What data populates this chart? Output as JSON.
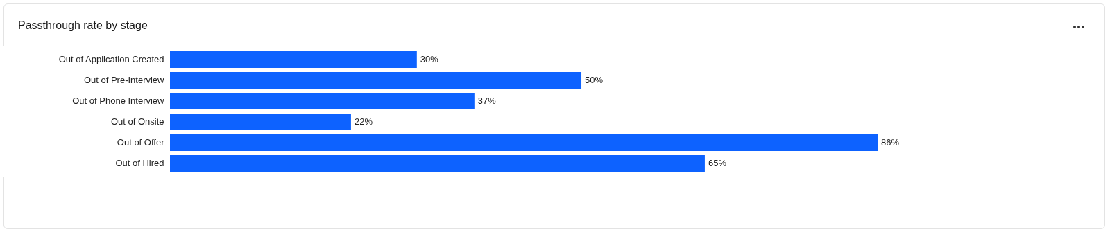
{
  "chart_data": {
    "type": "bar",
    "orientation": "horizontal",
    "title": "Passthrough rate by stage",
    "categories": [
      "Out of Application Created",
      "Out of Pre-Interview",
      "Out of Phone Interview",
      "Out of Onsite",
      "Out of Offer",
      "Out of Hired"
    ],
    "values": [
      30,
      50,
      37,
      22,
      86,
      65
    ],
    "value_labels": [
      "30%",
      "50%",
      "37%",
      "22%",
      "86%",
      "65%"
    ],
    "color": "#0d62ff"
  }
}
